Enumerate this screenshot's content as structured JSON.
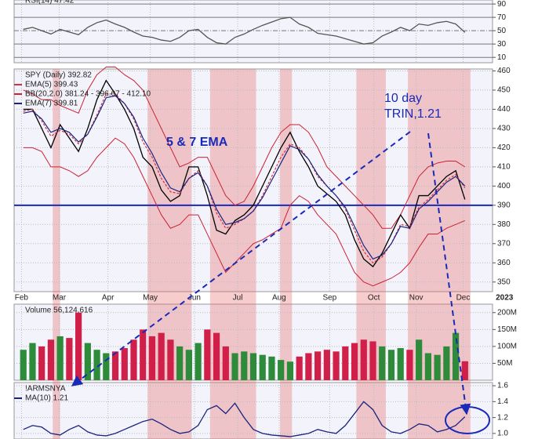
{
  "chart_data": [
    {
      "type": "line",
      "title": "RSI(14) 47.42",
      "color": "#555555",
      "values": [
        52,
        55,
        50,
        45,
        52,
        48,
        44,
        55,
        62,
        66,
        60,
        55,
        48,
        42,
        40,
        36,
        34,
        40,
        50,
        52,
        40,
        32,
        30,
        40,
        45,
        52,
        58,
        63,
        68,
        70,
        60,
        55,
        46,
        44,
        42,
        38,
        34,
        30,
        32,
        42,
        48,
        55,
        50,
        60,
        58,
        62,
        64,
        60,
        47.42
      ],
      "ylim": [
        2,
        96
      ],
      "yticks": [
        90,
        70,
        50,
        30,
        10
      ],
      "grid": true
    },
    {
      "type": "line",
      "title": "SPY (Daily) 392.82",
      "color": "#000000",
      "values": [
        440,
        440,
        430,
        420,
        432,
        425,
        418,
        430,
        445,
        455,
        448,
        440,
        430,
        415,
        410,
        398,
        392,
        395,
        410,
        410,
        395,
        377,
        375,
        382,
        385,
        390,
        400,
        410,
        420,
        428,
        418,
        410,
        400,
        396,
        392,
        385,
        372,
        362,
        358,
        365,
        375,
        385,
        378,
        395,
        395,
        400,
        405,
        408,
        393
      ],
      "series": [
        {
          "name": "EMA(5) 399.43",
          "color": "#cc3344",
          "values": [
            439,
            440,
            434,
            426,
            429,
            427,
            422,
            427,
            437,
            448,
            448,
            443,
            435,
            423,
            415,
            404,
            397,
            396,
            404,
            408,
            400,
            386,
            378,
            380,
            383,
            387,
            395,
            405,
            415,
            422,
            420,
            414,
            405,
            400,
            395,
            388,
            377,
            366,
            360,
            363,
            370,
            380,
            379,
            389,
            393,
            398,
            403,
            406,
            399
          ]
        },
        {
          "name": "EMA(7) 399.81",
          "color": "#1a237e",
          "values": [
            438,
            439,
            435,
            428,
            430,
            428,
            423,
            427,
            436,
            446,
            447,
            443,
            436,
            425,
            417,
            407,
            399,
            397,
            404,
            407,
            400,
            388,
            380,
            381,
            383,
            387,
            394,
            403,
            412,
            421,
            419,
            414,
            406,
            400,
            395,
            389,
            379,
            369,
            362,
            364,
            370,
            379,
            378,
            388,
            392,
            397,
            402,
            405,
            400
          ]
        }
      ],
      "bands": {
        "name": "BB(20,2.0) 381.24 - 396.67 - 412.10",
        "color": "#cc2233",
        "upper": [
          450,
          448,
          445,
          445,
          442,
          440,
          438,
          450,
          458,
          462,
          462,
          458,
          455,
          450,
          440,
          430,
          420,
          410,
          412,
          415,
          415,
          405,
          395,
          390,
          392,
          400,
          410,
          420,
          428,
          432,
          432,
          428,
          420,
          410,
          405,
          400,
          395,
          390,
          385,
          378,
          378,
          385,
          395,
          405,
          410,
          412,
          413,
          413,
          410
        ],
        "lower": [
          420,
          420,
          418,
          410,
          410,
          408,
          405,
          408,
          415,
          420,
          425,
          422,
          415,
          405,
          395,
          385,
          378,
          380,
          385,
          385,
          375,
          365,
          355,
          360,
          365,
          370,
          372,
          375,
          378,
          390,
          395,
          392,
          385,
          380,
          375,
          365,
          355,
          350,
          348,
          350,
          352,
          355,
          360,
          368,
          375,
          375,
          378,
          380,
          382
        ]
      },
      "hline": 390,
      "hline_color": "#1a2ab8",
      "shaded_spans": [
        [
          3.2,
          4.0
        ],
        [
          13.5,
          18.3
        ],
        [
          20.3,
          25.3
        ],
        [
          27.9,
          29.2
        ],
        [
          36.2,
          39.4
        ],
        [
          41.8,
          48.6
        ]
      ],
      "xlim": [
        -1,
        51
      ],
      "xticks": [
        {
          "value": -0.2,
          "label": "Feb"
        },
        {
          "value": 3.9,
          "label": "Mar"
        },
        {
          "value": 9.2,
          "label": "Apr"
        },
        {
          "value": 13.8,
          "label": "May"
        },
        {
          "value": 18.6,
          "label": "Jun"
        },
        {
          "value": 23.3,
          "label": "Jul"
        },
        {
          "value": 27.8,
          "label": "Aug"
        },
        {
          "value": 33.3,
          "label": "Sep"
        },
        {
          "value": 38.1,
          "label": "Oct"
        },
        {
          "value": 42.7,
          "label": "Nov"
        },
        {
          "value": 47.8,
          "label": "Dec"
        },
        {
          "value": 52.3,
          "label": "2023"
        }
      ],
      "ylim": [
        345,
        461
      ],
      "yticks": [
        460,
        450,
        440,
        430,
        420,
        410,
        400,
        390,
        380,
        370,
        360,
        350
      ],
      "grid": true,
      "annotations": [
        "5 & 7 EMA",
        "10 day",
        "TRIN,1.21"
      ]
    },
    {
      "type": "bar",
      "title": "Volume 56,124,616",
      "values": [
        90,
        110,
        100,
        120,
        130,
        125,
        200,
        110,
        90,
        80,
        85,
        95,
        120,
        150,
        130,
        140,
        120,
        100,
        90,
        110,
        150,
        140,
        100,
        80,
        85,
        80,
        75,
        70,
        60,
        55,
        70,
        80,
        85,
        90,
        85,
        100,
        110,
        120,
        115,
        100,
        90,
        95,
        90,
        120,
        80,
        75,
        100,
        140,
        56.12
      ],
      "colors": {
        "up": "#2e8b3a",
        "down": "#d0204a"
      },
      "ylim": [
        0,
        225
      ],
      "yticks": [
        {
          "value": 200,
          "label": "200M"
        },
        {
          "value": 150,
          "label": "150M"
        },
        {
          "value": 100,
          "label": "100M"
        },
        {
          "value": 50,
          "label": "50M"
        }
      ],
      "grid": true
    },
    {
      "type": "line",
      "title": "!ARMSNYA",
      "series": [
        {
          "name": "MA(10) 1.21",
          "color": "#1a237e",
          "values": [
            1.05,
            1.1,
            1.08,
            1.0,
            0.98,
            1.05,
            1.1,
            1.02,
            0.98,
            0.97,
            1.0,
            1.05,
            1.1,
            1.15,
            1.18,
            1.12,
            1.05,
            1.0,
            1.02,
            1.1,
            1.3,
            1.35,
            1.25,
            1.38,
            1.2,
            1.05,
            1.0,
            0.98,
            0.97,
            0.96,
            0.98,
            1.0,
            1.05,
            1.02,
            1.0,
            1.1,
            1.25,
            1.4,
            1.3,
            1.1,
            1.02,
            1.0,
            1.05,
            1.12,
            1.1,
            1.02,
            1.05,
            1.1,
            1.21
          ]
        }
      ],
      "ylim": [
        0.93,
        1.64
      ],
      "yticks": [
        1.6,
        1.4,
        1.2,
        {
          "value": 1,
          "label": "1.0"
        }
      ],
      "grid": true
    }
  ]
}
